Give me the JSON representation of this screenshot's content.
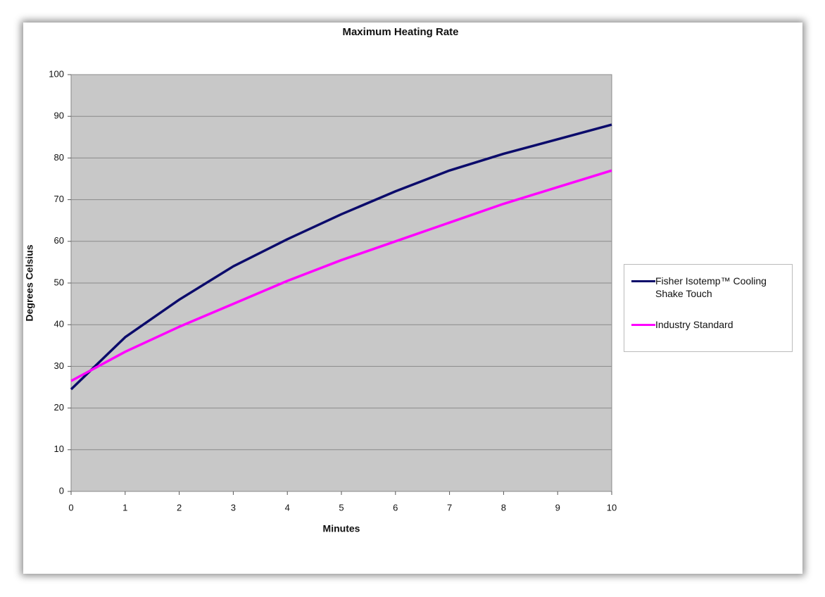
{
  "chart_data": {
    "type": "line",
    "title": "Maximum Heating Rate",
    "x_label": "Minutes",
    "y_label": "Degrees Celsius",
    "x": [
      0,
      1,
      2,
      3,
      4,
      5,
      6,
      7,
      8,
      9,
      10
    ],
    "series": [
      {
        "name": "Fisher Isotemp™ Cooling Shake Touch",
        "color": "#0b0b6b",
        "values": [
          24.5,
          37,
          46,
          54,
          60.5,
          66.5,
          72,
          77,
          81,
          84.5,
          88
        ]
      },
      {
        "name": "Industry Standard",
        "color": "#ff00ff",
        "values": [
          26.5,
          33.5,
          39.5,
          45,
          50.5,
          55.5,
          60,
          64.5,
          69,
          73,
          77
        ]
      }
    ],
    "xlim": [
      0,
      10
    ],
    "xticks": [
      0,
      1,
      2,
      3,
      4,
      5,
      6,
      7,
      8,
      9,
      10
    ],
    "ylim": [
      0,
      100
    ],
    "yticks": [
      0,
      10,
      20,
      30,
      40,
      50,
      60,
      70,
      80,
      90,
      100
    ],
    "grid": true,
    "legend": "right"
  }
}
